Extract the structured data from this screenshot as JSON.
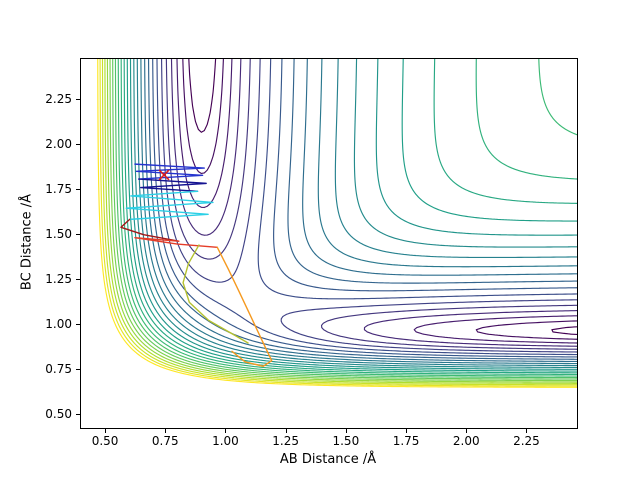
{
  "chart_data": {
    "type": "contour",
    "title": "",
    "xlabel": "AB Distance /Å",
    "ylabel": "BC Distance /Å",
    "xlim": [
      0.4,
      2.46
    ],
    "ylim": [
      0.42,
      2.47
    ],
    "xticks": {
      "values": [
        0.5,
        0.75,
        1.0,
        1.25,
        1.5,
        1.75,
        2.0,
        2.25
      ],
      "labels": [
        "0.50",
        "0.75",
        "1.00",
        "1.25",
        "1.50",
        "1.75",
        "2.00",
        "2.25"
      ]
    },
    "yticks": {
      "values": [
        0.5,
        0.75,
        1.0,
        1.25,
        1.5,
        1.75,
        2.0,
        2.25
      ],
      "labels": [
        "0.50",
        "0.75",
        "1.00",
        "1.25",
        "1.50",
        "1.75",
        "2.00",
        "2.25"
      ]
    },
    "grid": false,
    "legend": false,
    "colormap": "viridis",
    "colormap_anchors": [
      "#440154",
      "#482878",
      "#3e4989",
      "#31688e",
      "#26828e",
      "#1f9e89",
      "#35b779",
      "#6ece58",
      "#b5de2b",
      "#fde725"
    ],
    "levels": {
      "count": 26,
      "exponent": 1.7,
      "max_eV": 2.5
    },
    "surface_model": {
      "type": "LEPS",
      "bonds": [
        "AB",
        "BC",
        "AC"
      ],
      "D_eV": [
        4.746,
        4.746,
        4.746
      ],
      "a_per_A": [
        1.9,
        2.6,
        2.3
      ],
      "r0_A": [
        0.9,
        0.96,
        0.93
      ],
      "sato": 0.15,
      "grid_n": 170
    },
    "trajectory": {
      "marker": {
        "x": 0.745,
        "y": 1.826,
        "symbol": "x",
        "color": "#dc1c1c"
      },
      "segments": [
        {
          "color": "#2433cf",
          "points": [
            [
              0.624,
              1.886
            ],
            [
              0.912,
              1.864
            ],
            [
              0.63,
              1.846
            ],
            [
              0.905,
              1.824
            ],
            [
              0.64,
              1.803
            ]
          ]
        },
        {
          "color": "#151391",
          "points": [
            [
              0.64,
              1.803
            ],
            [
              0.92,
              1.779
            ],
            [
              0.648,
              1.756
            ],
            [
              0.884,
              1.735
            ]
          ]
        },
        {
          "color": "#2bd0e6",
          "points": [
            [
              0.884,
              1.735
            ],
            [
              0.607,
              1.709
            ],
            [
              0.948,
              1.673
            ],
            [
              0.588,
              1.641
            ],
            [
              0.928,
              1.607
            ],
            [
              0.602,
              1.579
            ]
          ]
        },
        {
          "color": "#a01818",
          "points": [
            [
              0.602,
              1.579
            ],
            [
              0.566,
              1.535
            ],
            [
              0.66,
              1.494
            ],
            [
              0.806,
              1.458
            ]
          ]
        },
        {
          "color": "#e53c28",
          "points": [
            [
              0.806,
              1.458
            ],
            [
              0.624,
              1.477
            ],
            [
              0.8,
              1.442
            ],
            [
              0.966,
              1.424
            ]
          ]
        },
        {
          "color": "#b4c12f",
          "points": [
            [
              0.89,
              1.437
            ],
            [
              0.846,
              1.333
            ],
            [
              0.824,
              1.227
            ],
            [
              0.85,
              1.118
            ],
            [
              0.93,
              1.018
            ],
            [
              1.022,
              0.948
            ],
            [
              1.094,
              0.892
            ]
          ]
        },
        {
          "color": "#f5991f",
          "points": [
            [
              0.966,
              1.424
            ],
            [
              1.012,
              1.302
            ],
            [
              1.058,
              1.174
            ],
            [
              1.104,
              1.043
            ],
            [
              1.15,
              0.912
            ],
            [
              1.192,
              0.794
            ],
            [
              1.157,
              0.763
            ],
            [
              1.082,
              0.787
            ],
            [
              1.027,
              0.846
            ]
          ]
        }
      ]
    }
  }
}
